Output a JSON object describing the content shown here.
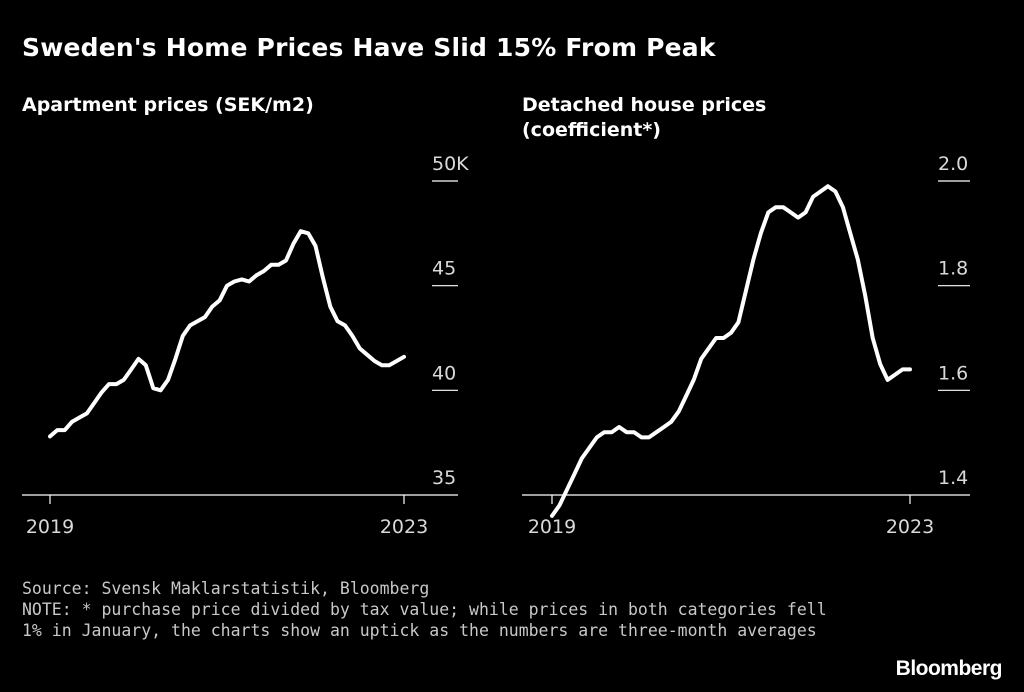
{
  "title": "Sweden's Home Prices Have Slid 15% From Peak",
  "chart_data": [
    {
      "type": "line",
      "title": "Apartment prices (SEK/m2)",
      "x_ticks": [
        "2019",
        "2023"
      ],
      "x_range": [
        2019,
        2023
      ],
      "y_ticks": [
        "35",
        "40",
        "45",
        "50K"
      ],
      "y_tick_values": [
        35,
        40,
        45,
        50
      ],
      "ylim": [
        35,
        50
      ],
      "series": [
        {
          "name": "Apartment prices",
          "x": [
            2019.0,
            2019.083,
            2019.167,
            2019.25,
            2019.333,
            2019.417,
            2019.5,
            2019.583,
            2019.667,
            2019.75,
            2019.833,
            2019.917,
            2020.0,
            2020.083,
            2020.167,
            2020.25,
            2020.333,
            2020.417,
            2020.5,
            2020.583,
            2020.667,
            2020.75,
            2020.833,
            2020.917,
            2021.0,
            2021.083,
            2021.167,
            2021.25,
            2021.333,
            2021.417,
            2021.5,
            2021.583,
            2021.667,
            2021.75,
            2021.833,
            2021.917,
            2022.0,
            2022.083,
            2022.167,
            2022.25,
            2022.333,
            2022.417,
            2022.5,
            2022.583,
            2022.667,
            2022.75,
            2022.833,
            2022.917,
            2023.0
          ],
          "values": [
            37.8,
            38.1,
            38.1,
            38.5,
            38.7,
            38.9,
            39.4,
            39.9,
            40.3,
            40.3,
            40.5,
            41.0,
            41.5,
            41.2,
            40.1,
            40.0,
            40.5,
            41.5,
            42.6,
            43.1,
            43.3,
            43.5,
            44.0,
            44.3,
            45.0,
            45.2,
            45.3,
            45.2,
            45.5,
            45.7,
            46.0,
            46.0,
            46.2,
            47.0,
            47.6,
            47.5,
            46.9,
            45.4,
            44.0,
            43.3,
            43.1,
            42.6,
            42.0,
            41.7,
            41.4,
            41.2,
            41.2,
            41.4,
            41.6
          ]
        }
      ]
    },
    {
      "type": "line",
      "title": "Detached house prices (coefficient*)",
      "x_ticks": [
        "2019",
        "2023"
      ],
      "x_range": [
        2019,
        2023
      ],
      "y_ticks": [
        "1.4",
        "1.6",
        "1.8",
        "2.0"
      ],
      "y_tick_values": [
        1.4,
        1.6,
        1.8,
        2.0
      ],
      "ylim": [
        1.4,
        2.0
      ],
      "series": [
        {
          "name": "Detached house prices",
          "x": [
            2019.0,
            2019.083,
            2019.167,
            2019.25,
            2019.333,
            2019.417,
            2019.5,
            2019.583,
            2019.667,
            2019.75,
            2019.833,
            2019.917,
            2020.0,
            2020.083,
            2020.167,
            2020.25,
            2020.333,
            2020.417,
            2020.5,
            2020.583,
            2020.667,
            2020.75,
            2020.833,
            2020.917,
            2021.0,
            2021.083,
            2021.167,
            2021.25,
            2021.333,
            2021.417,
            2021.5,
            2021.583,
            2021.667,
            2021.75,
            2021.833,
            2021.917,
            2022.0,
            2022.083,
            2022.167,
            2022.25,
            2022.333,
            2022.417,
            2022.5,
            2022.583,
            2022.667,
            2022.75,
            2022.833,
            2022.917,
            2023.0
          ],
          "values": [
            1.36,
            1.38,
            1.41,
            1.44,
            1.47,
            1.49,
            1.51,
            1.52,
            1.52,
            1.53,
            1.52,
            1.52,
            1.51,
            1.51,
            1.52,
            1.53,
            1.54,
            1.56,
            1.59,
            1.62,
            1.66,
            1.68,
            1.7,
            1.7,
            1.71,
            1.73,
            1.79,
            1.85,
            1.9,
            1.94,
            1.95,
            1.95,
            1.94,
            1.93,
            1.94,
            1.97,
            1.98,
            1.99,
            1.98,
            1.95,
            1.9,
            1.85,
            1.78,
            1.7,
            1.65,
            1.62,
            1.63,
            1.64,
            1.64
          ]
        }
      ]
    }
  ],
  "footer": {
    "source": "Source: Svensk Maklarstatistik, Bloomberg",
    "note": "NOTE: * purchase price divided by tax value; while prices in both categories fell 1% in January, the charts show an uptick as the numbers are three-month averages"
  },
  "brand": "Bloomberg",
  "colors": {
    "background": "#000000",
    "line": "#ffffff",
    "axis": "#ffffff",
    "text": "#d9d9d9"
  }
}
